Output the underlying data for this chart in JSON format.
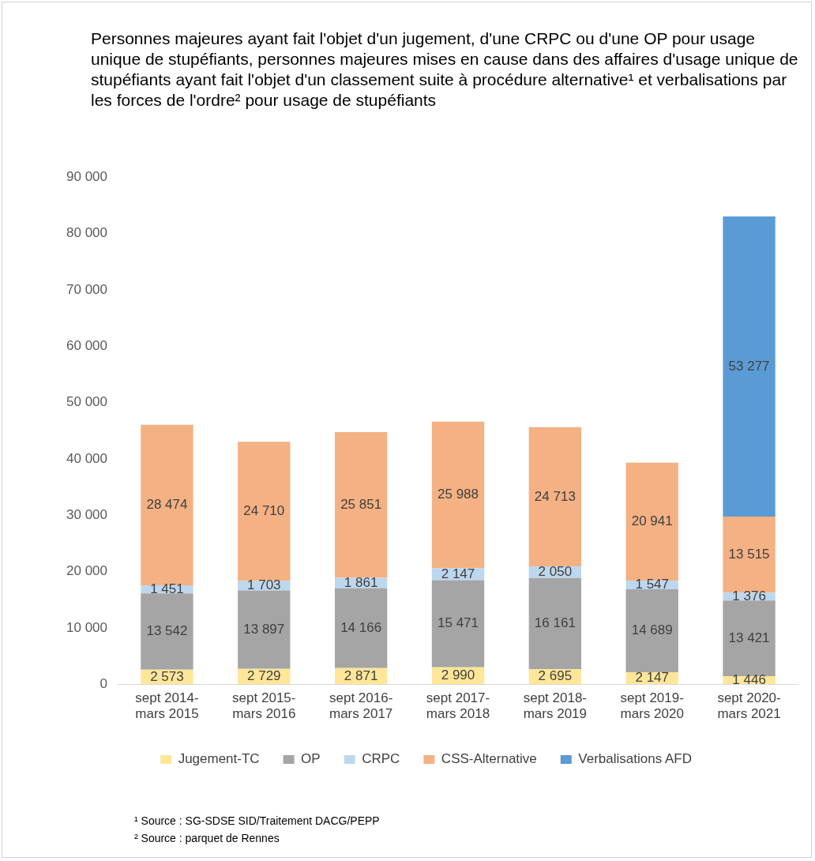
{
  "chart_data": {
    "type": "bar",
    "title": "Personnes majeures ayant fait l'objet d'un jugement, d'une CRPC ou d'une OP pour usage unique de stupéfiants, personnes majeures mises en cause dans des affaires d'usage unique de stupéfiants ayant fait l'objet d'un classement suite à procédure alternative¹ et verbalisations par les forces de l'ordre² pour usage de stupéfiants",
    "categories": [
      "sept 2014-mars 2015",
      "sept 2015-mars 2016",
      "sept 2016-mars 2017",
      "sept 2017-mars 2018",
      "sept 2018-mars 2019",
      "sept 2019-mars 2020",
      "sept 2020-mars 2021"
    ],
    "stacked": true,
    "series": [
      {
        "name": "Jugement-TC",
        "color": "#ffe699",
        "values": [
          2573,
          2729,
          2871,
          2990,
          2695,
          2147,
          1446
        ],
        "value_labels": [
          "2 573",
          "2 729",
          "2 871",
          "2 990",
          "2 695",
          "2 147",
          "1 446"
        ]
      },
      {
        "name": "OP",
        "color": "#a5a5a5",
        "values": [
          13542,
          13897,
          14166,
          15471,
          16161,
          14689,
          13421
        ],
        "value_labels": [
          "13 542",
          "13 897",
          "14 166",
          "15 471",
          "16 161",
          "14 689",
          "13 421"
        ]
      },
      {
        "name": "CRPC",
        "color": "#bdd7ee",
        "values": [
          1451,
          1703,
          1861,
          2147,
          2050,
          1547,
          1376
        ],
        "value_labels": [
          "1 451",
          "1 703",
          "1 861",
          "2 147",
          "2 050",
          "1 547",
          "1 376"
        ]
      },
      {
        "name": "CSS-Alternative",
        "color": "#f4b183",
        "values": [
          28474,
          24710,
          25851,
          25988,
          24713,
          20941,
          13515
        ],
        "value_labels": [
          "28 474",
          "24 710",
          "25 851",
          "25 988",
          "24 713",
          "20 941",
          "13 515"
        ]
      },
      {
        "name": "Verbalisations AFD",
        "color": "#5b9bd5",
        "values": [
          null,
          null,
          null,
          null,
          null,
          null,
          53277
        ],
        "value_labels": [
          null,
          null,
          null,
          null,
          null,
          null,
          "53 277"
        ]
      }
    ],
    "ylim": [
      0,
      90000
    ],
    "yticks": [
      {
        "value": 0,
        "label": "0"
      },
      {
        "value": 10000,
        "label": "10 000"
      },
      {
        "value": 20000,
        "label": "20 000"
      },
      {
        "value": 30000,
        "label": "30 000"
      },
      {
        "value": 40000,
        "label": "40 000"
      },
      {
        "value": 50000,
        "label": "50 000"
      },
      {
        "value": 60000,
        "label": "60 000"
      },
      {
        "value": 70000,
        "label": "70 000"
      },
      {
        "value": 80000,
        "label": "80 000"
      },
      {
        "value": 90000,
        "label": "90 000"
      }
    ],
    "grid": false,
    "legend": "bottom",
    "annotations": [
      "¹ Source : SG-SDSE SID/Traitement DACG/PEPP",
      "² Source : parquet de Rennes"
    ]
  }
}
